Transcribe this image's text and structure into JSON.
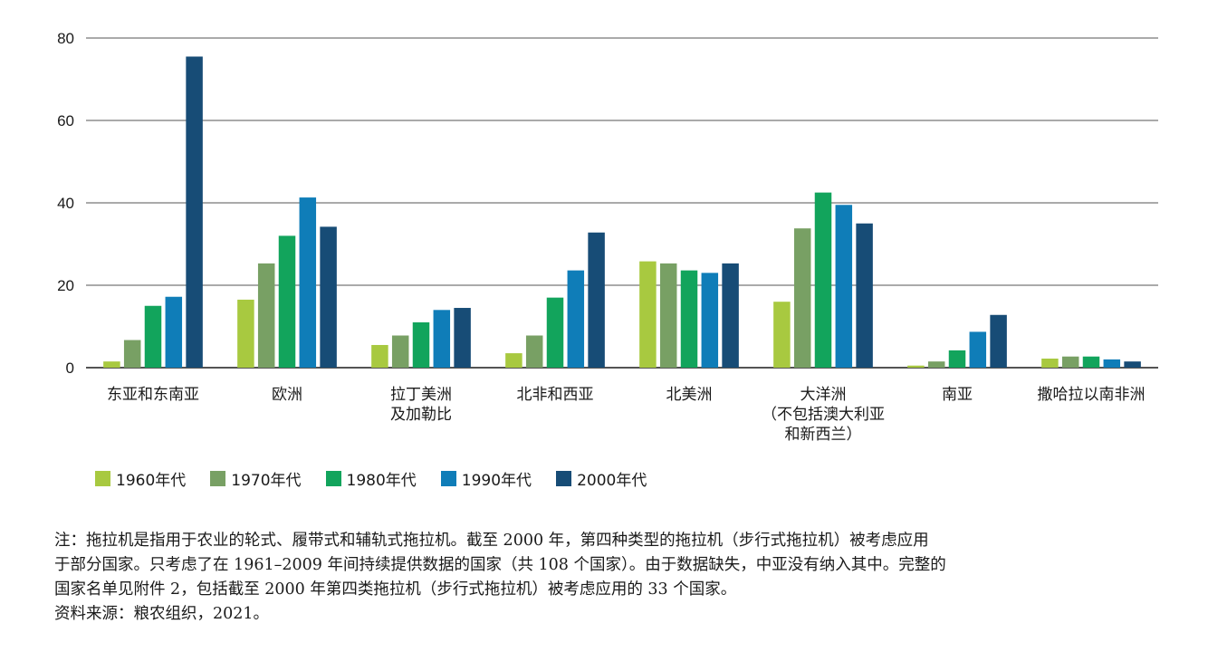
{
  "chart_data": {
    "type": "bar",
    "title": "",
    "xlabel": "",
    "ylabel": "",
    "ylim": [
      0,
      80
    ],
    "yticks": [
      0,
      20,
      40,
      60,
      80
    ],
    "grid": true,
    "legend_position": "bottom-left",
    "categories": [
      [
        "东亚和东南亚"
      ],
      [
        "欧洲"
      ],
      [
        "拉丁美洲",
        "及加勒比"
      ],
      [
        "北非和西亚"
      ],
      [
        "北美洲"
      ],
      [
        "大洋洲",
        "（不包括澳大利亚",
        "和新西兰）"
      ],
      [
        "南亚"
      ],
      [
        "撒哈拉以南非洲"
      ]
    ],
    "series": [
      {
        "name": "1960年代",
        "color": "#a8c940",
        "values": [
          1.5,
          16.5,
          5.5,
          3.5,
          25.8,
          16.0,
          0.5,
          2.2
        ]
      },
      {
        "name": "1970年代",
        "color": "#78a064",
        "values": [
          6.7,
          25.3,
          7.8,
          7.8,
          25.3,
          33.8,
          1.5,
          2.7
        ]
      },
      {
        "name": "1980年代",
        "color": "#12a45c",
        "values": [
          15.0,
          32.0,
          11.0,
          17.0,
          23.6,
          42.5,
          4.2,
          2.7
        ]
      },
      {
        "name": "1990年代",
        "color": "#0f7db8",
        "values": [
          17.2,
          41.3,
          14.0,
          23.6,
          23.0,
          39.5,
          8.7,
          2.0
        ]
      },
      {
        "name": "2000年代",
        "color": "#174c76",
        "values": [
          75.5,
          34.2,
          14.5,
          32.8,
          25.3,
          35.0,
          12.8,
          1.5
        ]
      }
    ]
  },
  "notes": {
    "line1": "注：拖拉机是指用于农业的轮式、履带式和辅轨式拖拉机。截至 2000 年，第四种类型的拖拉机（步行式拖拉机）被考虑应用",
    "line2": "于部分国家。只考虑了在 1961–2009 年间持续提供数据的国家（共 108 个国家）。由于数据缺失，中亚没有纳入其中。完整的",
    "line3": "国家名单见附件 2，包括截至 2000 年第四类拖拉机（步行式拖拉机）被考虑应用的 33 个国家。",
    "source": "资料来源：粮农组织，2021。"
  }
}
